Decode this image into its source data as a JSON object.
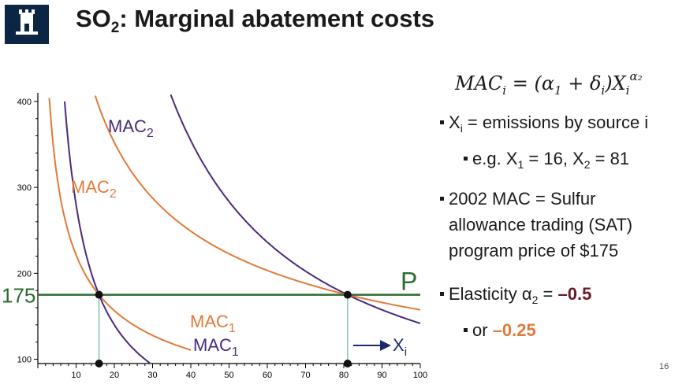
{
  "slide": {
    "title_main": "SO",
    "title_sub": "2",
    "title_rest": ": Marginal abatement costs",
    "page_number": "16"
  },
  "formula": {
    "lhs": "MAC",
    "lhs_sub": "i",
    "eq": " = (α",
    "a_sub": "1",
    "plus": " + δ",
    "d_sub": "i",
    "mid": ")X",
    "x_sub": "i",
    "exp": "α₂"
  },
  "bullets": {
    "b1_pre": "X",
    "b1_sub": "i",
    "b1_post": " = emissions by source i",
    "b2_pre": "e.g. X",
    "b2_s1": "1",
    "b2_mid": " = 16, X",
    "b2_s2": "2",
    "b2_post": " = 81",
    "b3_line1": "2002 MAC = Sulfur",
    "b3_line2": "allowance trading (SAT)",
    "b3_line3": "program price of $175",
    "b4_pre": "Elasticity α",
    "b4_sub": "2",
    "b4_mid": " = ",
    "b4_val": "–0.5",
    "b5_pre": "or ",
    "b5_val": "–0.25"
  },
  "colors": {
    "purple": "#4a2a7a",
    "orange": "#e07a3a",
    "green": "#2e6b2e",
    "dark_red": "#6b1a2a"
  },
  "chart_data": {
    "type": "line",
    "x_ticks": [
      "10",
      "20",
      "30",
      "40",
      "50",
      "60",
      "70",
      "80",
      "90",
      "100"
    ],
    "y_ticks": [
      "100",
      "200",
      "300",
      "400"
    ],
    "xlim": [
      0,
      100
    ],
    "ylim": [
      95,
      410
    ],
    "price_level": 175,
    "price_label": "P",
    "price_value_label": "175",
    "x_axis_label": "X",
    "x_axis_label_sub": "i",
    "series": [
      {
        "name": "MAC1",
        "label": "MAC",
        "label_sub": "1",
        "color": "purple",
        "alpha": -1.0,
        "x0": 16,
        "x_range": [
          3,
          40
        ]
      },
      {
        "name": "MAC2",
        "label": "MAC",
        "label_sub": "2",
        "color": "purple",
        "alpha": -1.0,
        "x0": 81,
        "x_range": [
          17,
          100
        ]
      },
      {
        "name": "MAC1",
        "label": "MAC",
        "label_sub": "1",
        "color": "orange",
        "alpha": -0.5,
        "x0": 16,
        "x_range": [
          1,
          40
        ]
      },
      {
        "name": "MAC2",
        "label": "MAC",
        "label_sub": "2",
        "color": "orange",
        "alpha": -0.5,
        "x0": 81,
        "x_range": [
          1,
          100
        ]
      }
    ],
    "points": [
      {
        "x": 16,
        "y": 175
      },
      {
        "x": 81,
        "y": 175
      },
      {
        "x": 16,
        "y": 95
      },
      {
        "x": 81,
        "y": 95
      }
    ]
  }
}
